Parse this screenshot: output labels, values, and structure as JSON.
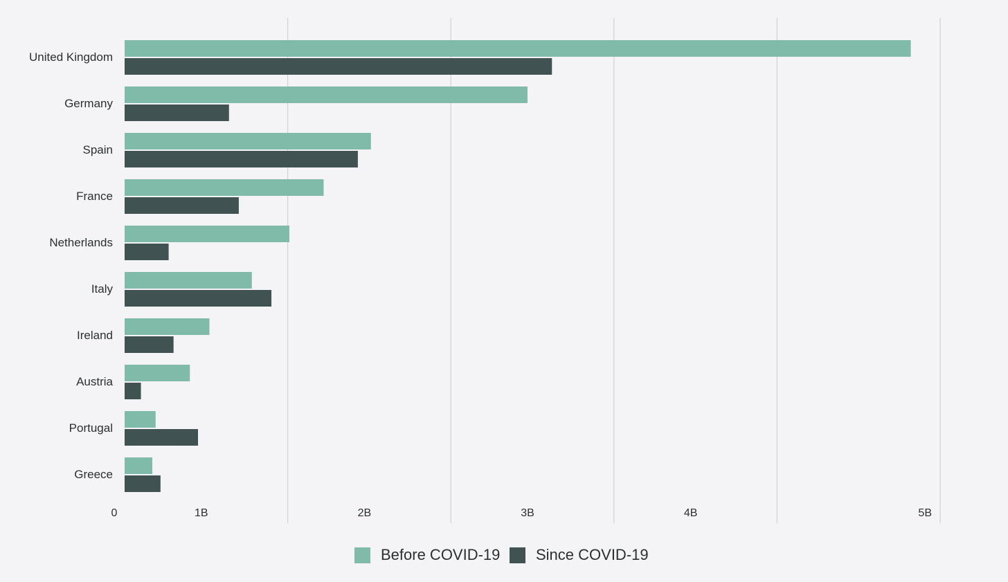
{
  "chart_data": {
    "type": "bar",
    "orientation": "horizontal",
    "categories": [
      "United Kingdom",
      "Germany",
      "Spain",
      "France",
      "Netherlands",
      "Italy",
      "Ireland",
      "Austria",
      "Portugal",
      "Greece"
    ],
    "series": [
      {
        "name": "Before COVID-19",
        "color": "#80baa9",
        "values": [
          4.82,
          2.47,
          1.51,
          1.22,
          1.01,
          0.78,
          0.52,
          0.4,
          0.19,
          0.17
        ]
      },
      {
        "name": "Since COVID-19",
        "color": "#405252",
        "values": [
          2.62,
          0.64,
          1.43,
          0.7,
          0.27,
          0.9,
          0.3,
          0.1,
          0.45,
          0.22
        ]
      }
    ],
    "xlim": [
      0,
      5
    ],
    "x_ticks": [
      0,
      1,
      2,
      3,
      4,
      5
    ],
    "x_tick_labels": [
      "0",
      "1B",
      "2B",
      "3B",
      "4B",
      "5B"
    ],
    "grid": true,
    "legend_position": "bottom-center"
  }
}
